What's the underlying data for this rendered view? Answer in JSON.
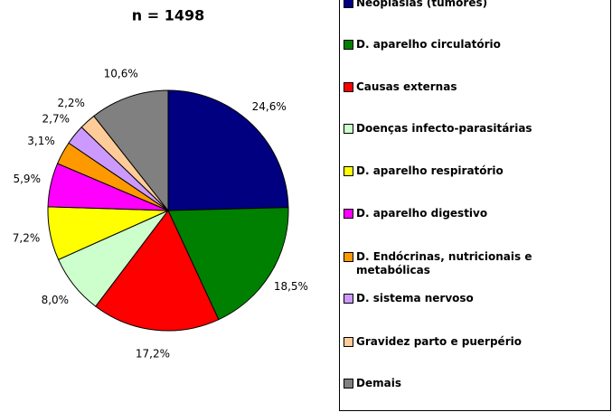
{
  "chart_data": {
    "type": "pie",
    "title": "n = 1498",
    "categories": [
      "Neoplasias (tumores)",
      "D. aparelho circulatório",
      "Causas externas",
      "Doenças infecto-parasitárias",
      "D. aparelho respiratório",
      "D. aparelho digestivo",
      "D. Endócrinas, nutricionais e metabólicas",
      "D. sistema nervoso",
      "Gravidez parto e puerpério",
      "Demais"
    ],
    "values": [
      24.6,
      18.5,
      17.2,
      8.0,
      7.2,
      5.9,
      3.1,
      2.7,
      2.2,
      10.6
    ],
    "value_labels": [
      "24,6%",
      "18,5%",
      "17,2%",
      "8,0%",
      "7,2%",
      "5,9%",
      "3,1%",
      "2,7%",
      "2,2%",
      "10,6%"
    ],
    "colors": [
      "#000080",
      "#008000",
      "#ff0000",
      "#ccffcc",
      "#ffff00",
      "#ff00ff",
      "#ff9900",
      "#cc99ff",
      "#ffcc99",
      "#808080"
    ]
  }
}
